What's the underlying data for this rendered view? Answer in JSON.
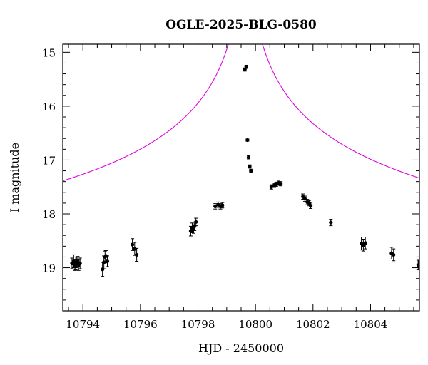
{
  "chart_data": {
    "type": "scatter",
    "title": "OGLE-2025-BLG-0580",
    "xlabel": "HJD - 2450000",
    "ylabel": "I magnitude",
    "xlim": [
      10793.3,
      10805.7
    ],
    "ylim": [
      19.8,
      14.85
    ],
    "y_inverted": true,
    "x_ticks": [
      10794,
      10796,
      10798,
      10800,
      10802,
      10804
    ],
    "y_ticks": [
      15,
      16,
      17,
      18,
      19
    ],
    "grid": false,
    "colors": {
      "data": "#000000",
      "model": "#e000e0"
    },
    "series": [
      {
        "type": "scatter",
        "x": [
          10793.62,
          10793.68,
          10793.72,
          10793.75,
          10793.78,
          10793.82,
          10793.85,
          10793.9,
          10794.68,
          10794.73,
          10794.77,
          10794.8,
          10794.85,
          10795.72,
          10795.8,
          10795.87,
          10797.75,
          10797.8,
          10797.85,
          10797.88,
          10797.93,
          10798.6,
          10798.7,
          10798.78,
          10798.85,
          10799.63,
          10799.68,
          10799.72,
          10799.76,
          10799.8,
          10799.84,
          10800.55,
          10800.65,
          10800.72,
          10800.8,
          10800.88,
          10801.65,
          10801.72,
          10801.8,
          10801.87,
          10801.92,
          10802.62,
          10803.68,
          10803.75,
          10803.82,
          10804.73,
          10804.8,
          10805.66,
          10805.7
        ],
        "y": [
          18.92,
          18.88,
          18.95,
          18.92,
          18.9,
          18.88,
          18.95,
          18.92,
          19.03,
          18.9,
          18.8,
          18.78,
          18.88,
          18.57,
          18.65,
          18.76,
          18.32,
          18.26,
          18.28,
          18.23,
          18.15,
          17.86,
          17.83,
          17.86,
          17.84,
          15.32,
          15.27,
          16.63,
          16.95,
          17.12,
          17.2,
          17.5,
          17.47,
          17.45,
          17.43,
          17.44,
          17.68,
          17.72,
          17.78,
          17.8,
          17.85,
          18.16,
          18.55,
          18.58,
          18.54,
          18.73,
          18.76,
          18.95,
          18.89
        ],
        "yerr": [
          0.1,
          0.12,
          0.1,
          0.12,
          0.1,
          0.09,
          0.1,
          0.1,
          0.13,
          0.12,
          0.11,
          0.1,
          0.1,
          0.11,
          0.12,
          0.12,
          0.09,
          0.09,
          0.08,
          0.08,
          0.07,
          0.05,
          0.05,
          0.05,
          0.05,
          0.03,
          0.03,
          0.02,
          0.03,
          0.03,
          0.03,
          0.04,
          0.04,
          0.04,
          0.04,
          0.04,
          0.05,
          0.05,
          0.05,
          0.05,
          0.05,
          0.06,
          0.12,
          0.11,
          0.11,
          0.11,
          0.11,
          0.09,
          0.09
        ]
      },
      {
        "type": "line",
        "model": "paczynski",
        "t0": 10799.65,
        "u0": 0.004,
        "tE": 30,
        "baseline_mag": 19.09
      }
    ]
  }
}
